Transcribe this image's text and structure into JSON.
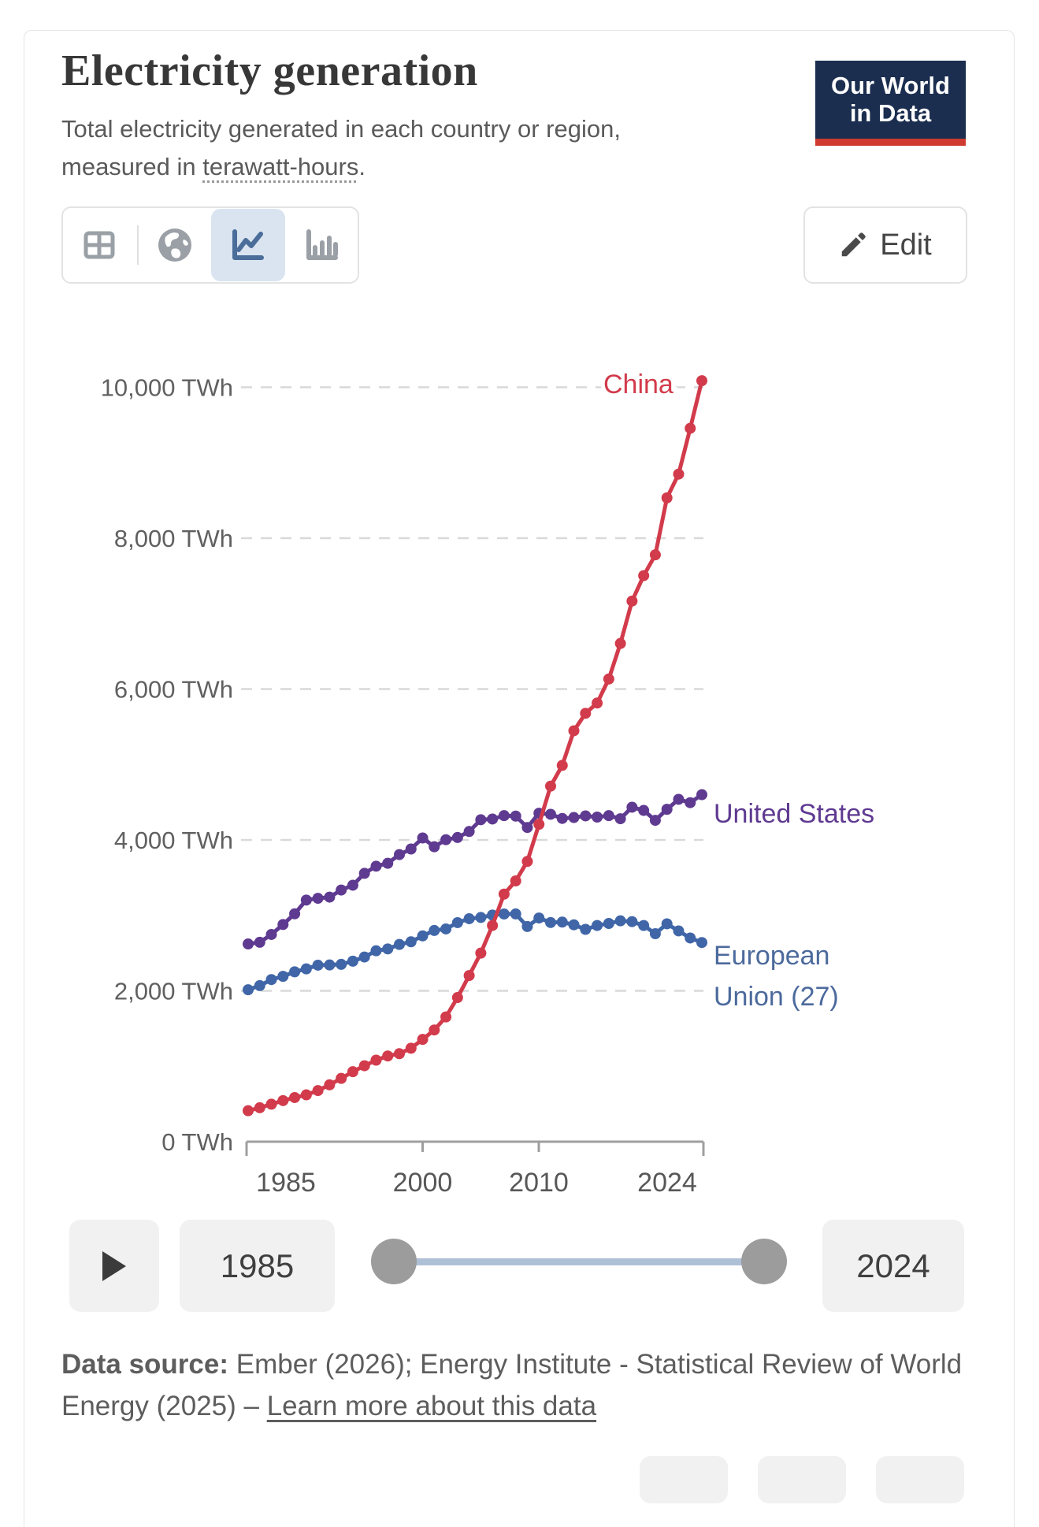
{
  "header": {
    "title": "Electricity generation",
    "subtitle_before": "Total electricity generated in each country or region, measured in ",
    "subtitle_term": "terawatt-hours",
    "subtitle_after": ".",
    "logo_line1": "Our World",
    "logo_line2": "in Data",
    "logo_navy": "#1b2e4f",
    "logo_red": "#cf3b30"
  },
  "toolbar": {
    "views": [
      "table-view",
      "map-view",
      "line-chart-view",
      "bar-chart-view"
    ],
    "selected_view": "line-chart-view",
    "edit_label": "Edit"
  },
  "chart_data": {
    "type": "line",
    "title": "Electricity generation",
    "unit": "TWh",
    "grid": "dashed-horizontal",
    "legend_position": "end-of-line-labels",
    "ylim": [
      0,
      10000
    ],
    "yticks": [
      10000,
      8000,
      6000,
      4000,
      2000,
      0
    ],
    "ytick_labels": [
      "10,000 TWh",
      "8,000 TWh",
      "6,000 TWh",
      "4,000 TWh",
      "2,000 TWh",
      "0 TWh"
    ],
    "xticks": [
      1985,
      2000,
      2010,
      2024
    ],
    "xtick_labels": [
      "1985",
      "2000",
      "2010",
      "2024"
    ],
    "x": [
      1985,
      1986,
      1987,
      1988,
      1989,
      1990,
      1991,
      1992,
      1993,
      1994,
      1995,
      1996,
      1997,
      1998,
      1999,
      2000,
      2001,
      2002,
      2003,
      2004,
      2005,
      2006,
      2007,
      2008,
      2009,
      2010,
      2011,
      2012,
      2013,
      2014,
      2015,
      2016,
      2017,
      2018,
      2019,
      2020,
      2021,
      2022,
      2023,
      2024
    ],
    "series": [
      {
        "name": "China",
        "color": "#d23b4b",
        "label_lines": [
          "China"
        ],
        "values": [
          411,
          450,
          497,
          545,
          585,
          621,
          678,
          754,
          839,
          928,
          1007,
          1081,
          1136,
          1167,
          1239,
          1356,
          1481,
          1654,
          1911,
          2203,
          2500,
          2866,
          3282,
          3457,
          3715,
          4207,
          4713,
          4988,
          5447,
          5678,
          5815,
          6133,
          6604,
          7166,
          7503,
          7779,
          8534,
          8849,
          9456,
          10087
        ]
      },
      {
        "name": "United States",
        "color": "#5f3a91",
        "label_lines": [
          "United States"
        ],
        "values": [
          2621,
          2643,
          2747,
          2879,
          3021,
          3203,
          3226,
          3242,
          3336,
          3400,
          3557,
          3652,
          3690,
          3806,
          3880,
          4026,
          3910,
          4003,
          4032,
          4112,
          4268,
          4277,
          4322,
          4316,
          4165,
          4354,
          4340,
          4285,
          4297,
          4319,
          4303,
          4322,
          4281,
          4434,
          4391,
          4260,
          4406,
          4538,
          4494,
          4600
        ]
      },
      {
        "name": "European Union (27)",
        "color": "#4066a8",
        "label_color": "#4c6a9c",
        "label_lines": [
          "European",
          "Union (27)"
        ],
        "values": [
          2014,
          2069,
          2149,
          2192,
          2252,
          2291,
          2340,
          2343,
          2351,
          2393,
          2448,
          2531,
          2555,
          2615,
          2650,
          2728,
          2800,
          2820,
          2904,
          2956,
          2972,
          3004,
          3018,
          3019,
          2852,
          2965,
          2905,
          2911,
          2875,
          2814,
          2866,
          2893,
          2928,
          2917,
          2866,
          2757,
          2888,
          2794,
          2700,
          2640
        ]
      }
    ]
  },
  "timeline": {
    "start_year": "1985",
    "end_year": "2024"
  },
  "footer": {
    "source_label": "Data source:",
    "source_text": " Ember (2026); Energy Institute - Statistical Review of World Energy (2025) – ",
    "link_text": "Learn more about this data"
  }
}
